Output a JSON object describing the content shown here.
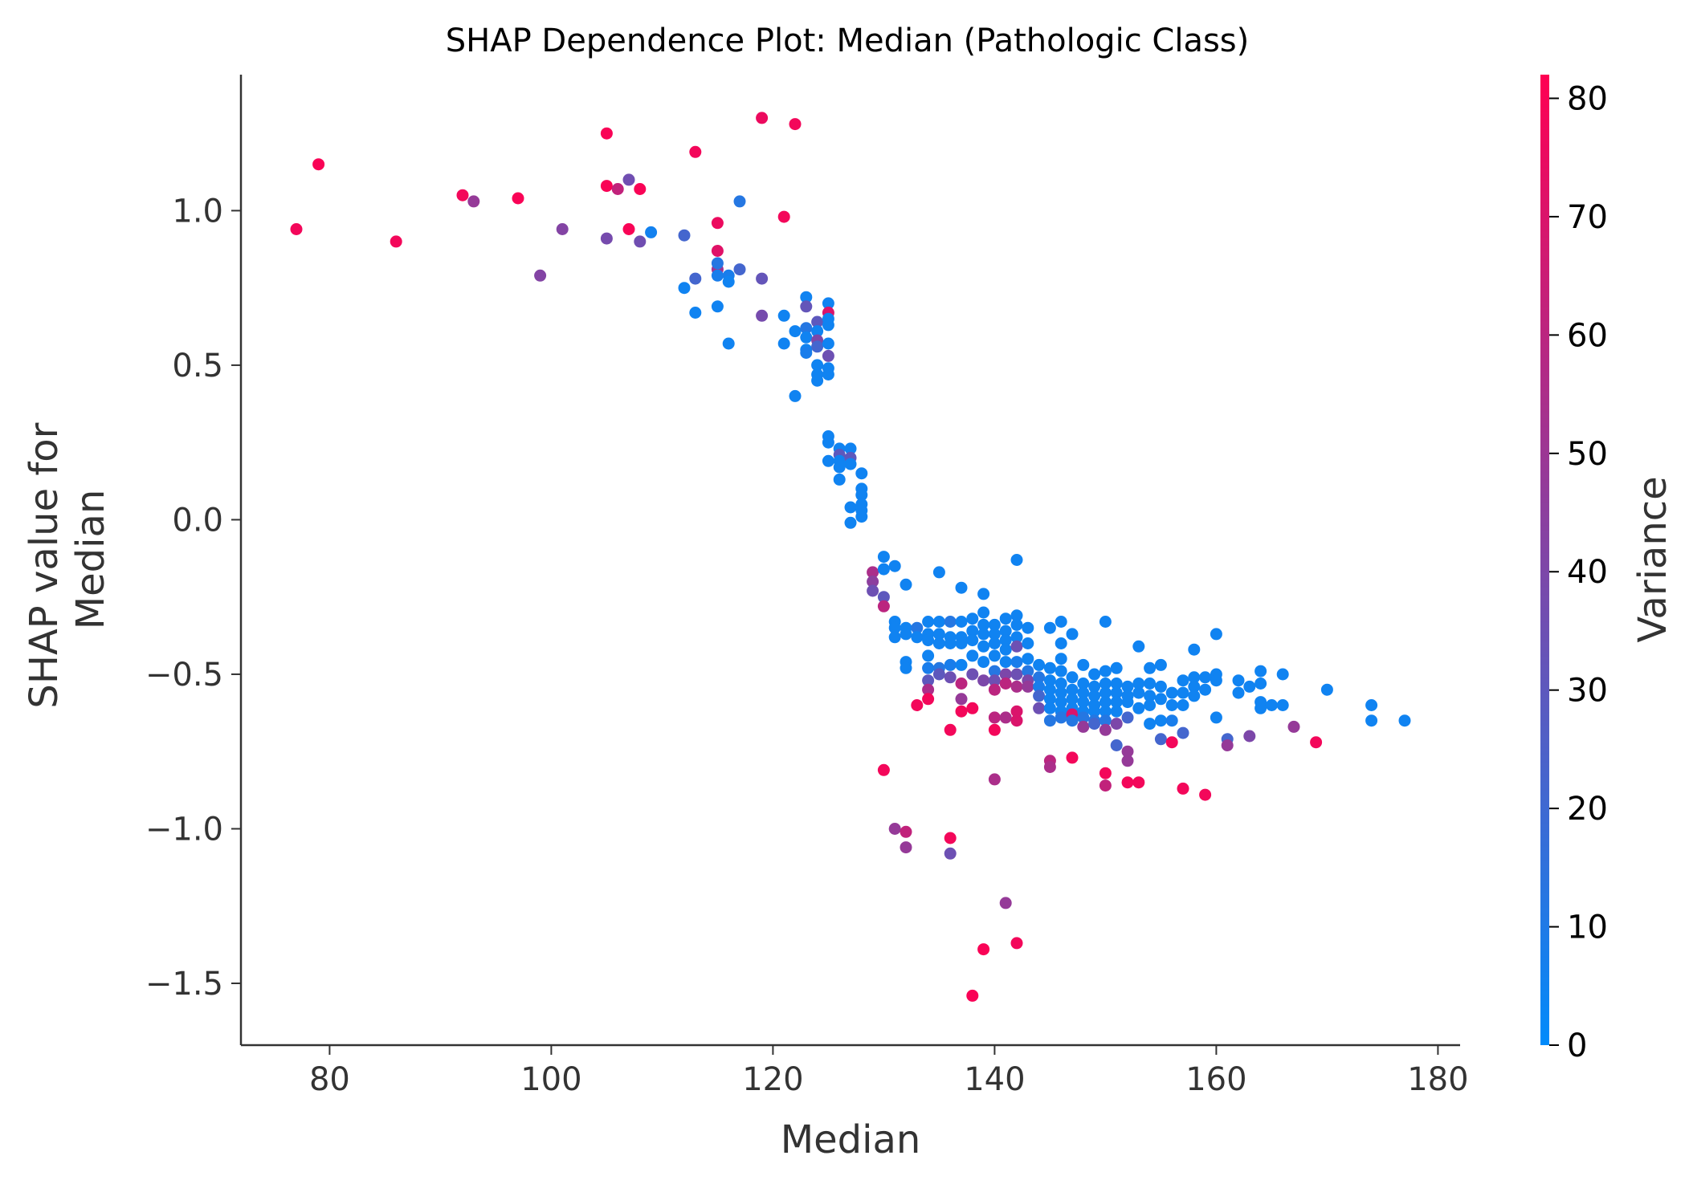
{
  "chart_data": {
    "type": "scatter",
    "title": "SHAP Dependence Plot: Median (Pathologic Class)",
    "xlabel": "Median",
    "ylabel_lines": [
      "SHAP value for",
      "Median"
    ],
    "xlim": [
      72,
      182
    ],
    "ylim": [
      -1.7,
      1.44
    ],
    "xticks": [
      80,
      100,
      120,
      140,
      160,
      180
    ],
    "yticks": [
      {
        "value": -1.5,
        "label": "−1.5"
      },
      {
        "value": -1.0,
        "label": "−1.0"
      },
      {
        "value": -0.5,
        "label": "−0.5"
      },
      {
        "value": 0.0,
        "label": "0.0"
      },
      {
        "value": 0.5,
        "label": "0.5"
      },
      {
        "value": 1.0,
        "label": "1.0"
      }
    ],
    "colorbar": {
      "label": "Variance",
      "range": [
        0,
        82
      ],
      "ticks": [
        0,
        10,
        20,
        30,
        40,
        50,
        60,
        70,
        80
      ],
      "low_color": "#008bfb",
      "high_color": "#ff0052"
    },
    "points": [
      [
        77,
        0.94,
        78
      ],
      [
        79,
        1.15,
        80
      ],
      [
        86,
        0.9,
        78
      ],
      [
        92,
        1.05,
        78
      ],
      [
        93,
        1.03,
        48
      ],
      [
        97,
        1.04,
        80
      ],
      [
        99,
        0.79,
        42
      ],
      [
        101,
        0.94,
        42
      ],
      [
        105,
        1.25,
        80
      ],
      [
        105,
        1.08,
        80
      ],
      [
        106,
        1.07,
        62
      ],
      [
        107,
        1.1,
        36
      ],
      [
        107,
        0.94,
        80
      ],
      [
        108,
        1.07,
        80
      ],
      [
        105,
        0.91,
        38
      ],
      [
        108,
        0.9,
        36
      ],
      [
        109,
        0.93,
        6
      ],
      [
        113,
        1.19,
        78
      ],
      [
        112,
        0.92,
        22
      ],
      [
        113,
        0.78,
        22
      ],
      [
        112,
        0.75,
        5
      ],
      [
        113,
        0.67,
        5
      ],
      [
        115,
        0.96,
        76
      ],
      [
        115,
        0.87,
        72
      ],
      [
        115,
        0.81,
        52
      ],
      [
        115,
        0.83,
        12
      ],
      [
        115,
        0.79,
        8
      ],
      [
        116,
        0.79,
        8
      ],
      [
        116,
        0.77,
        5
      ],
      [
        117,
        1.03,
        12
      ],
      [
        117,
        0.81,
        22
      ],
      [
        115,
        0.69,
        5
      ],
      [
        116,
        0.57,
        5
      ],
      [
        119,
        1.3,
        76
      ],
      [
        119,
        0.78,
        32
      ],
      [
        119,
        0.66,
        38
      ],
      [
        121,
        0.98,
        78
      ],
      [
        121,
        0.66,
        5
      ],
      [
        121,
        0.57,
        5
      ],
      [
        122,
        1.28,
        78
      ],
      [
        122,
        0.61,
        5
      ],
      [
        122,
        0.4,
        5
      ],
      [
        123,
        0.72,
        5
      ],
      [
        123,
        0.69,
        32
      ],
      [
        123,
        0.62,
        12
      ],
      [
        123,
        0.59,
        5
      ],
      [
        123,
        0.55,
        5
      ],
      [
        123,
        0.54,
        8
      ],
      [
        124,
        0.64,
        30
      ],
      [
        124,
        0.61,
        5
      ],
      [
        124,
        0.58,
        40
      ],
      [
        124,
        0.56,
        22
      ],
      [
        124,
        0.5,
        5
      ],
      [
        124,
        0.47,
        5
      ],
      [
        124,
        0.45,
        5
      ],
      [
        125,
        0.7,
        5
      ],
      [
        125,
        0.67,
        70
      ],
      [
        125,
        0.65,
        5
      ],
      [
        125,
        0.63,
        5
      ],
      [
        125,
        0.57,
        5
      ],
      [
        125,
        0.53,
        35
      ],
      [
        125,
        0.49,
        5
      ],
      [
        125,
        0.47,
        5
      ],
      [
        125,
        0.27,
        5
      ],
      [
        125,
        0.25,
        5
      ],
      [
        125,
        0.19,
        5
      ],
      [
        126,
        0.23,
        5
      ],
      [
        126,
        0.21,
        30
      ],
      [
        126,
        0.19,
        5
      ],
      [
        126,
        0.17,
        5
      ],
      [
        126,
        0.13,
        5
      ],
      [
        127,
        0.23,
        5
      ],
      [
        127,
        0.2,
        30
      ],
      [
        127,
        0.18,
        5
      ],
      [
        127,
        0.04,
        5
      ],
      [
        127,
        -0.01,
        5
      ],
      [
        128,
        0.15,
        5
      ],
      [
        128,
        0.1,
        5
      ],
      [
        128,
        0.08,
        5
      ],
      [
        128,
        0.05,
        5
      ],
      [
        128,
        0.01,
        5
      ],
      [
        128,
        0.03,
        5
      ],
      [
        129,
        -0.17,
        55
      ],
      [
        129,
        -0.2,
        45
      ],
      [
        129,
        -0.23,
        35
      ],
      [
        130,
        -0.12,
        5
      ],
      [
        130,
        -0.16,
        5
      ],
      [
        130,
        -0.25,
        30
      ],
      [
        130,
        -0.28,
        60
      ],
      [
        130,
        -0.81,
        78
      ],
      [
        131,
        -0.15,
        5
      ],
      [
        131,
        -0.33,
        5
      ],
      [
        131,
        -0.35,
        5
      ],
      [
        131,
        -0.38,
        5
      ],
      [
        131,
        -1.0,
        48
      ],
      [
        132,
        -0.21,
        5
      ],
      [
        132,
        -0.35,
        5
      ],
      [
        132,
        -0.37,
        5
      ],
      [
        132,
        -0.46,
        5
      ],
      [
        132,
        -0.48,
        5
      ],
      [
        132,
        -1.01,
        62
      ],
      [
        132,
        -1.06,
        48
      ],
      [
        133,
        -0.35,
        12
      ],
      [
        133,
        -0.38,
        5
      ],
      [
        133,
        -0.6,
        78
      ],
      [
        134,
        -0.33,
        5
      ],
      [
        134,
        -0.37,
        5
      ],
      [
        134,
        -0.39,
        5
      ],
      [
        134,
        -0.44,
        5
      ],
      [
        134,
        -0.48,
        8
      ],
      [
        134,
        -0.52,
        30
      ],
      [
        134,
        -0.55,
        55
      ],
      [
        134,
        -0.58,
        78
      ],
      [
        135,
        -0.17,
        5
      ],
      [
        135,
        -0.33,
        5
      ],
      [
        135,
        -0.37,
        5
      ],
      [
        135,
        -0.4,
        5
      ],
      [
        135,
        -0.48,
        12
      ],
      [
        135,
        -0.5,
        30
      ],
      [
        136,
        -0.33,
        12
      ],
      [
        136,
        -0.38,
        5
      ],
      [
        136,
        -0.4,
        5
      ],
      [
        136,
        -0.47,
        8
      ],
      [
        136,
        -0.51,
        35
      ],
      [
        136,
        -0.68,
        78
      ],
      [
        136,
        -1.03,
        78
      ],
      [
        136,
        -1.08,
        35
      ],
      [
        137,
        -0.22,
        5
      ],
      [
        137,
        -0.33,
        5
      ],
      [
        137,
        -0.38,
        5
      ],
      [
        137,
        -0.4,
        5
      ],
      [
        137,
        -0.47,
        5
      ],
      [
        137,
        -0.53,
        60
      ],
      [
        137,
        -0.58,
        48
      ],
      [
        137,
        -0.62,
        78
      ],
      [
        138,
        -0.32,
        5
      ],
      [
        138,
        -0.36,
        5
      ],
      [
        138,
        -0.39,
        5
      ],
      [
        138,
        -0.44,
        5
      ],
      [
        138,
        -0.5,
        35
      ],
      [
        138,
        -0.61,
        78
      ],
      [
        138,
        -1.54,
        80
      ],
      [
        139,
        -0.24,
        5
      ],
      [
        139,
        -0.3,
        5
      ],
      [
        139,
        -0.34,
        5
      ],
      [
        139,
        -0.37,
        5
      ],
      [
        139,
        -0.41,
        5
      ],
      [
        139,
        -0.46,
        5
      ],
      [
        139,
        -0.52,
        40
      ],
      [
        139,
        -1.39,
        80
      ],
      [
        140,
        -0.34,
        5
      ],
      [
        140,
        -0.37,
        5
      ],
      [
        140,
        -0.4,
        5
      ],
      [
        140,
        -0.44,
        5
      ],
      [
        140,
        -0.49,
        12
      ],
      [
        140,
        -0.52,
        35
      ],
      [
        140,
        -0.55,
        60
      ],
      [
        140,
        -0.64,
        60
      ],
      [
        140,
        -0.68,
        78
      ],
      [
        140,
        -0.84,
        55
      ],
      [
        141,
        -0.32,
        5
      ],
      [
        141,
        -0.36,
        5
      ],
      [
        141,
        -0.39,
        5
      ],
      [
        141,
        -0.42,
        5
      ],
      [
        141,
        -0.46,
        5
      ],
      [
        141,
        -0.5,
        40
      ],
      [
        141,
        -0.53,
        60
      ],
      [
        141,
        -0.64,
        55
      ],
      [
        141,
        -1.24,
        48
      ],
      [
        142,
        -0.13,
        5
      ],
      [
        142,
        -0.31,
        5
      ],
      [
        142,
        -0.34,
        5
      ],
      [
        142,
        -0.38,
        5
      ],
      [
        142,
        -0.41,
        35
      ],
      [
        142,
        -0.46,
        8
      ],
      [
        142,
        -0.5,
        35
      ],
      [
        142,
        -0.54,
        55
      ],
      [
        142,
        -0.62,
        70
      ],
      [
        142,
        -0.65,
        70
      ],
      [
        142,
        -1.37,
        78
      ],
      [
        143,
        -0.35,
        5
      ],
      [
        143,
        -0.4,
        5
      ],
      [
        143,
        -0.45,
        5
      ],
      [
        143,
        -0.49,
        12
      ],
      [
        143,
        -0.52,
        40
      ],
      [
        143,
        -0.54,
        48
      ],
      [
        144,
        -0.47,
        5
      ],
      [
        144,
        -0.51,
        12
      ],
      [
        144,
        -0.54,
        8
      ],
      [
        144,
        -0.57,
        22
      ],
      [
        144,
        -0.61,
        35
      ],
      [
        145,
        -0.35,
        5
      ],
      [
        145,
        -0.48,
        5
      ],
      [
        145,
        -0.52,
        5
      ],
      [
        145,
        -0.55,
        5
      ],
      [
        145,
        -0.58,
        5
      ],
      [
        145,
        -0.61,
        5
      ],
      [
        145,
        -0.65,
        12
      ],
      [
        145,
        -0.78,
        60
      ],
      [
        145,
        -0.8,
        55
      ],
      [
        146,
        -0.33,
        5
      ],
      [
        146,
        -0.4,
        5
      ],
      [
        146,
        -0.45,
        5
      ],
      [
        146,
        -0.49,
        5
      ],
      [
        146,
        -0.53,
        5
      ],
      [
        146,
        -0.56,
        5
      ],
      [
        146,
        -0.59,
        5
      ],
      [
        146,
        -0.62,
        5
      ],
      [
        146,
        -0.64,
        12
      ],
      [
        147,
        -0.37,
        5
      ],
      [
        147,
        -0.51,
        5
      ],
      [
        147,
        -0.55,
        5
      ],
      [
        147,
        -0.58,
        5
      ],
      [
        147,
        -0.61,
        5
      ],
      [
        147,
        -0.63,
        70
      ],
      [
        147,
        -0.65,
        12
      ],
      [
        147,
        -0.77,
        78
      ],
      [
        148,
        -0.47,
        5
      ],
      [
        148,
        -0.53,
        5
      ],
      [
        148,
        -0.56,
        5
      ],
      [
        148,
        -0.59,
        5
      ],
      [
        148,
        -0.62,
        5
      ],
      [
        148,
        -0.64,
        12
      ],
      [
        148,
        -0.67,
        48
      ],
      [
        149,
        -0.5,
        5
      ],
      [
        149,
        -0.54,
        5
      ],
      [
        149,
        -0.57,
        5
      ],
      [
        149,
        -0.6,
        5
      ],
      [
        149,
        -0.62,
        5
      ],
      [
        149,
        -0.65,
        12
      ],
      [
        149,
        -0.66,
        22
      ],
      [
        150,
        -0.33,
        5
      ],
      [
        150,
        -0.49,
        5
      ],
      [
        150,
        -0.53,
        5
      ],
      [
        150,
        -0.56,
        5
      ],
      [
        150,
        -0.59,
        5
      ],
      [
        150,
        -0.62,
        5
      ],
      [
        150,
        -0.65,
        12
      ],
      [
        150,
        -0.68,
        48
      ],
      [
        150,
        -0.82,
        78
      ],
      [
        150,
        -0.86,
        62
      ],
      [
        151,
        -0.48,
        5
      ],
      [
        151,
        -0.53,
        5
      ],
      [
        151,
        -0.56,
        5
      ],
      [
        151,
        -0.59,
        5
      ],
      [
        151,
        -0.62,
        5
      ],
      [
        151,
        -0.66,
        40
      ],
      [
        151,
        -0.73,
        22
      ],
      [
        152,
        -0.54,
        5
      ],
      [
        152,
        -0.57,
        5
      ],
      [
        152,
        -0.59,
        5
      ],
      [
        152,
        -0.64,
        22
      ],
      [
        152,
        -0.75,
        48
      ],
      [
        152,
        -0.78,
        48
      ],
      [
        152,
        -0.85,
        78
      ],
      [
        153,
        -0.41,
        5
      ],
      [
        153,
        -0.53,
        5
      ],
      [
        153,
        -0.56,
        5
      ],
      [
        153,
        -0.61,
        5
      ],
      [
        153,
        -0.85,
        78
      ],
      [
        154,
        -0.48,
        5
      ],
      [
        154,
        -0.53,
        5
      ],
      [
        154,
        -0.57,
        5
      ],
      [
        154,
        -0.6,
        5
      ],
      [
        154,
        -0.66,
        5
      ],
      [
        155,
        -0.47,
        5
      ],
      [
        155,
        -0.54,
        5
      ],
      [
        155,
        -0.58,
        5
      ],
      [
        155,
        -0.65,
        5
      ],
      [
        155,
        -0.71,
        22
      ],
      [
        156,
        -0.56,
        5
      ],
      [
        156,
        -0.6,
        5
      ],
      [
        156,
        -0.65,
        8
      ],
      [
        156,
        -0.72,
        78
      ],
      [
        157,
        -0.52,
        5
      ],
      [
        157,
        -0.56,
        5
      ],
      [
        157,
        -0.6,
        5
      ],
      [
        157,
        -0.69,
        22
      ],
      [
        157,
        -0.87,
        78
      ],
      [
        158,
        -0.42,
        5
      ],
      [
        158,
        -0.51,
        5
      ],
      [
        158,
        -0.54,
        5
      ],
      [
        158,
        -0.57,
        5
      ],
      [
        159,
        -0.51,
        5
      ],
      [
        159,
        -0.55,
        5
      ],
      [
        159,
        -0.89,
        78
      ],
      [
        160,
        -0.37,
        5
      ],
      [
        160,
        -0.5,
        5
      ],
      [
        160,
        -0.52,
        5
      ],
      [
        160,
        -0.64,
        5
      ],
      [
        161,
        -0.71,
        22
      ],
      [
        161,
        -0.73,
        48
      ],
      [
        162,
        -0.52,
        5
      ],
      [
        162,
        -0.56,
        5
      ],
      [
        163,
        -0.54,
        5
      ],
      [
        163,
        -0.7,
        40
      ],
      [
        164,
        -0.49,
        5
      ],
      [
        164,
        -0.53,
        5
      ],
      [
        164,
        -0.59,
        5
      ],
      [
        164,
        -0.61,
        5
      ],
      [
        165,
        -0.6,
        5
      ],
      [
        166,
        -0.5,
        5
      ],
      [
        166,
        -0.6,
        5
      ],
      [
        167,
        -0.67,
        48
      ],
      [
        169,
        -0.72,
        78
      ],
      [
        170,
        -0.55,
        5
      ],
      [
        174,
        -0.6,
        5
      ],
      [
        174,
        -0.65,
        5
      ],
      [
        177,
        -0.65,
        5
      ]
    ]
  }
}
